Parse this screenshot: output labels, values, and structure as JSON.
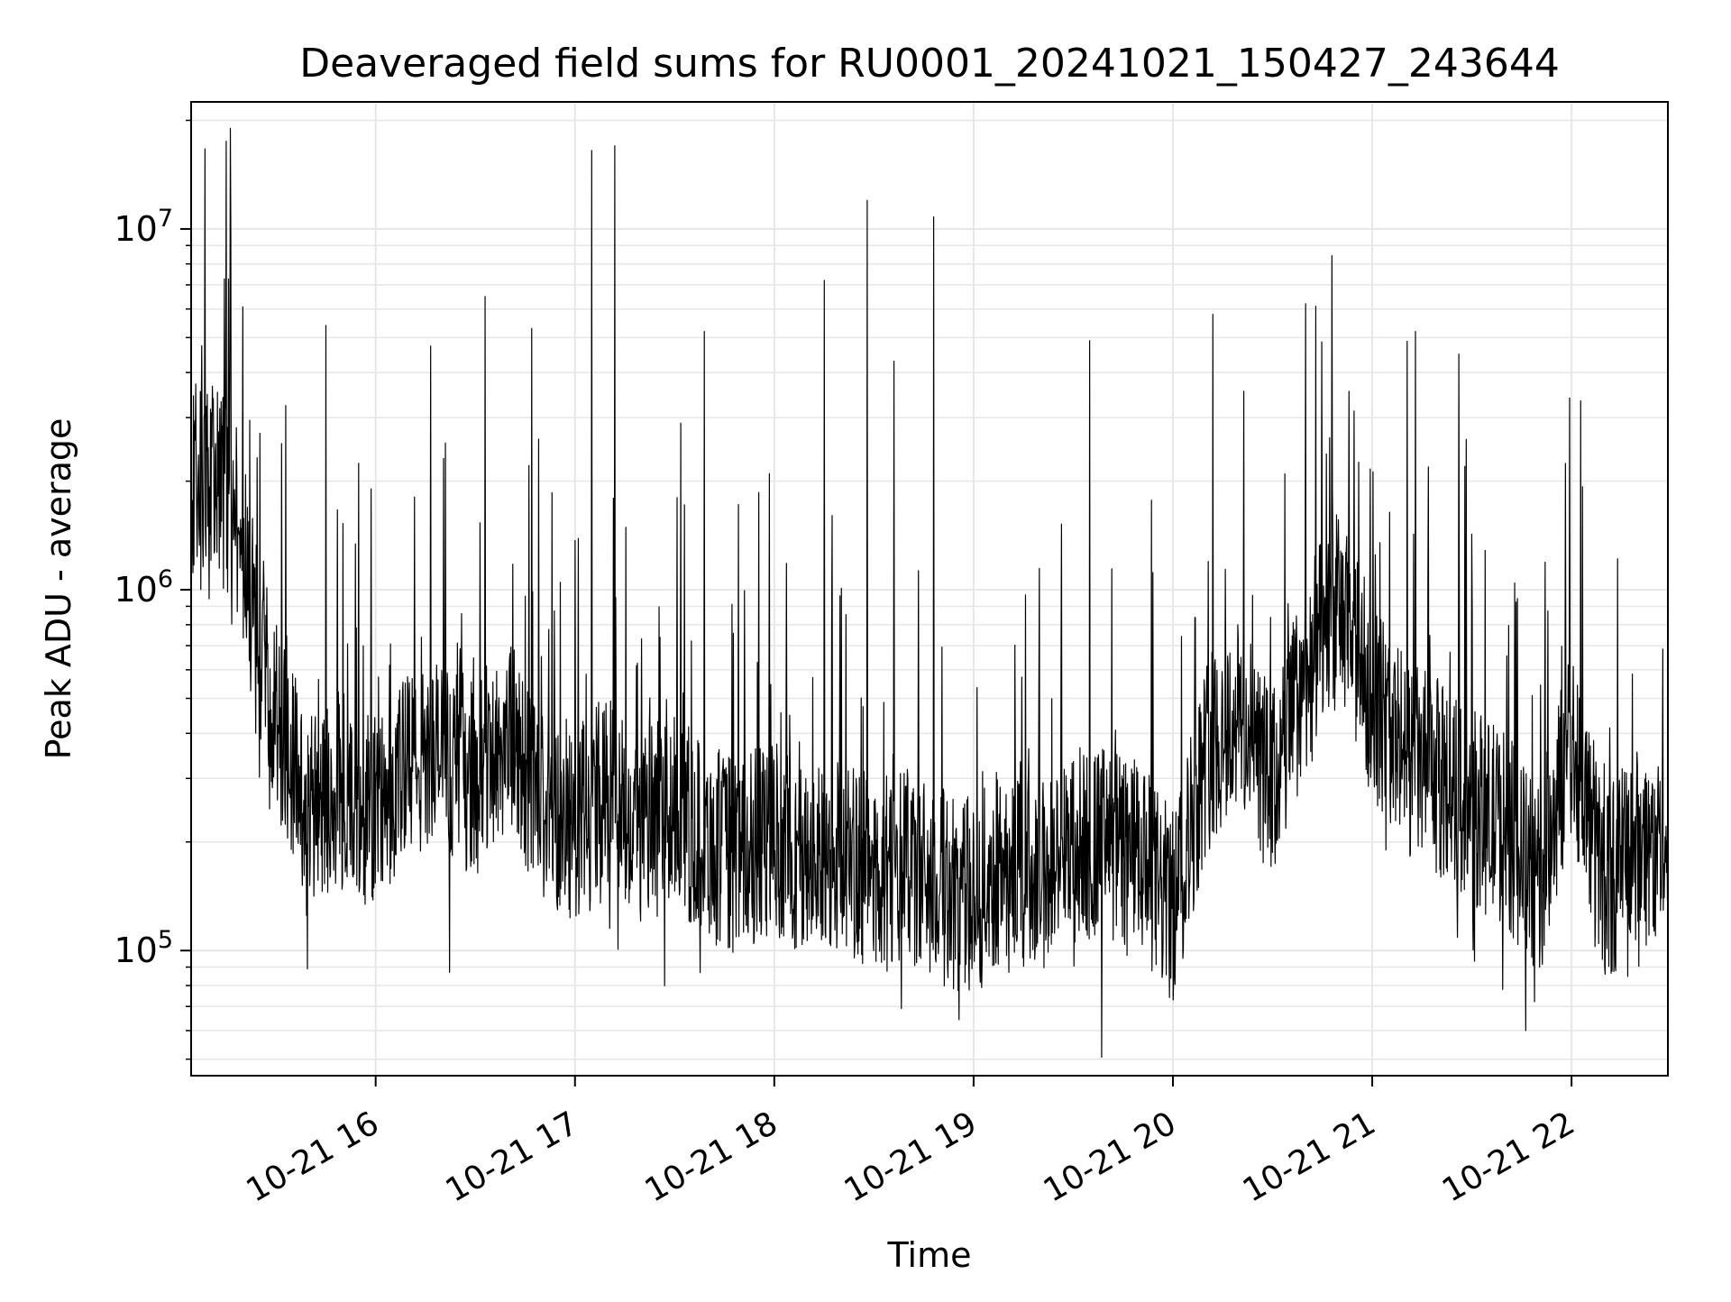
{
  "chart_data": {
    "type": "line",
    "title": "Deaveraged field sums for RU0001_20241021_150427_243644",
    "xlabel": "Time",
    "ylabel": "Peak ADU - average",
    "x_scale": "time",
    "y_scale": "log",
    "xlim": [
      "2024-10-21 15:04:27",
      "2024-10-21 22:29:00"
    ],
    "ylim": [
      45000,
      22500000
    ],
    "x_ticks": [
      "10-21 16",
      "10-21 17",
      "10-21 18",
      "10-21 19",
      "10-21 20",
      "10-21 21",
      "10-21 22"
    ],
    "y_ticks": [
      {
        "base": "10",
        "exp": "5"
      },
      {
        "base": "10",
        "exp": "6"
      },
      {
        "base": "10",
        "exp": "7"
      }
    ],
    "grid": true,
    "line_color": "#000000",
    "grid_color": "#e6e6e6",
    "series": [
      {
        "name": "",
        "x": [
          "2024-10-21 15:04:27",
          "2024-10-21 15:12:00",
          "2024-10-21 15:18:00",
          "2024-10-21 15:24:00",
          "2024-10-21 15:30:00",
          "2024-10-21 15:36:00",
          "2024-10-21 15:42:00",
          "2024-10-21 15:48:00",
          "2024-10-21 15:54:00",
          "2024-10-21 16:00:00",
          "2024-10-21 16:10:00",
          "2024-10-21 16:20:00",
          "2024-10-21 16:30:00",
          "2024-10-21 16:40:00",
          "2024-10-21 16:50:00",
          "2024-10-21 17:00:00",
          "2024-10-21 17:10:00",
          "2024-10-21 17:20:00",
          "2024-10-21 17:30:00",
          "2024-10-21 17:40:00",
          "2024-10-21 17:50:00",
          "2024-10-21 18:00:00",
          "2024-10-21 18:10:00",
          "2024-10-21 18:20:00",
          "2024-10-21 18:30:00",
          "2024-10-21 18:40:00",
          "2024-10-21 18:50:00",
          "2024-10-21 19:00:00",
          "2024-10-21 19:10:00",
          "2024-10-21 19:20:00",
          "2024-10-21 19:30:00",
          "2024-10-21 19:40:00",
          "2024-10-21 19:50:00",
          "2024-10-21 20:00:00",
          "2024-10-21 20:10:00",
          "2024-10-21 20:20:00",
          "2024-10-21 20:30:00",
          "2024-10-21 20:40:00",
          "2024-10-21 20:50:00",
          "2024-10-21 21:00:00",
          "2024-10-21 21:10:00",
          "2024-10-21 21:20:00",
          "2024-10-21 21:30:00",
          "2024-10-21 21:40:00",
          "2024-10-21 21:50:00",
          "2024-10-21 22:00:00",
          "2024-10-21 22:10:00",
          "2024-10-21 22:20:00",
          "2024-10-21 22:29:00"
        ],
        "y": [
          2000000,
          2200000,
          1600000,
          800000,
          450000,
          300000,
          250000,
          280000,
          260000,
          240000,
          320000,
          350000,
          300000,
          400000,
          250000,
          230000,
          280000,
          220000,
          240000,
          200000,
          180000,
          210000,
          170000,
          190000,
          160000,
          170000,
          150000,
          140000,
          180000,
          160000,
          190000,
          200000,
          180000,
          130000,
          350000,
          450000,
          280000,
          600000,
          900000,
          500000,
          350000,
          300000,
          250000,
          220000,
          150000,
          400000,
          150000,
          200000,
          180000
        ]
      }
    ],
    "spikes": {
      "x": [
        "2024-10-21 15:15:00",
        "2024-10-21 15:45:00",
        "2024-10-21 16:33:00",
        "2024-10-21 16:47:00",
        "2024-10-21 17:05:00",
        "2024-10-21 17:12:00",
        "2024-10-21 17:39:00",
        "2024-10-21 18:15:00",
        "2024-10-21 18:28:00",
        "2024-10-21 18:36:00",
        "2024-10-21 18:48:00",
        "2024-10-21 19:35:00",
        "2024-10-21 20:12:00",
        "2024-10-21 20:40:00",
        "2024-10-21 21:13:00",
        "2024-10-21 21:26:00"
      ],
      "y": [
        17500000,
        5400000,
        6500000,
        5300000,
        16500000,
        17000000,
        5200000,
        7200000,
        12000000,
        4300000,
        10800000,
        4900000,
        5800000,
        6200000,
        5200000,
        4500000
      ]
    }
  }
}
